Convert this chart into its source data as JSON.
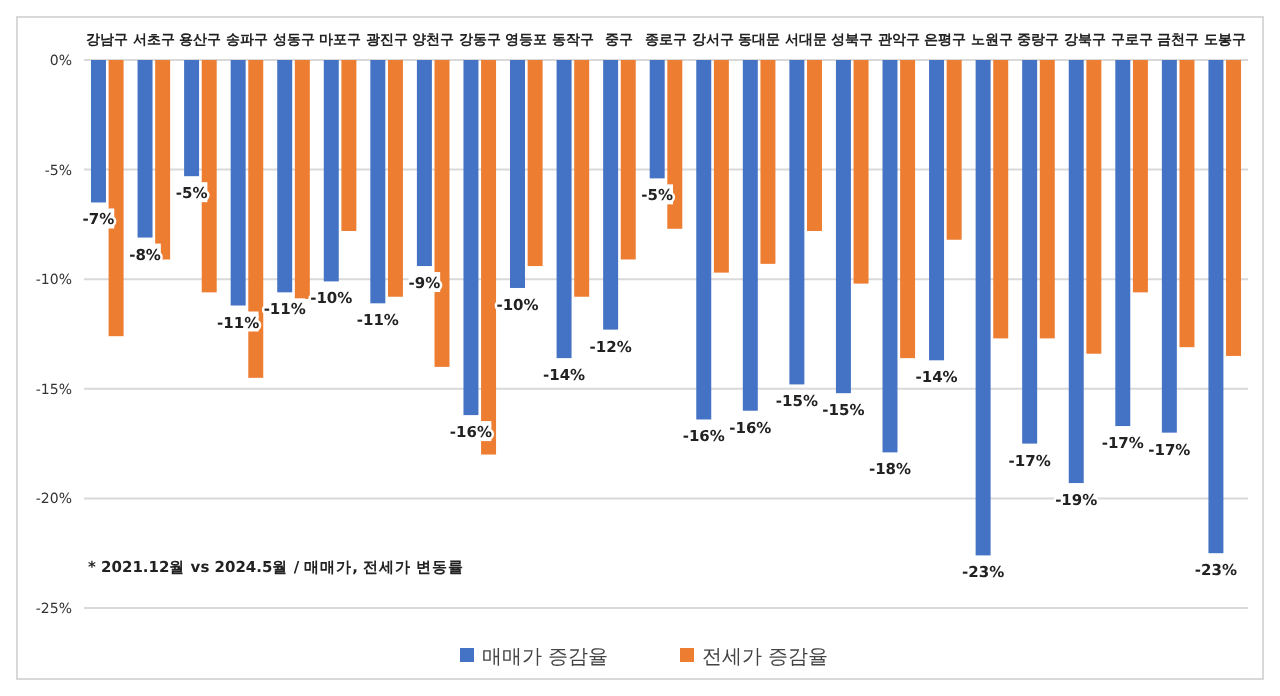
{
  "chart_data": {
    "type": "bar",
    "categories": [
      "강남구",
      "서초구",
      "용산구",
      "송파구",
      "성동구",
      "마포구",
      "광진구",
      "양천구",
      "강동구",
      "영등포",
      "동작구",
      "중구",
      "종로구",
      "강서구",
      "동대문",
      "서대문",
      "성북구",
      "관악구",
      "은평구",
      "노원구",
      "중랑구",
      "강북구",
      "구로구",
      "금천구",
      "도봉구"
    ],
    "series": [
      {
        "name": "매매가 증감율",
        "color": "#4472c4",
        "values": [
          -6.5,
          -8.1,
          -5.3,
          -11.2,
          -10.6,
          -10.1,
          -11.1,
          -9.4,
          -16.2,
          -10.4,
          -13.6,
          -12.3,
          -5.4,
          -16.4,
          -16.0,
          -14.8,
          -15.2,
          -17.9,
          -13.7,
          -22.6,
          -17.5,
          -19.3,
          -16.7,
          -17.0,
          -22.5
        ],
        "value_labels": [
          "-7%",
          "-8%",
          "-5%",
          "-11%",
          "-11%",
          "-10%",
          "-11%",
          "-9%",
          "-16%",
          "-10%",
          "-14%",
          "-12%",
          "-5%",
          "-16%",
          "-16%",
          "-15%",
          "-15%",
          "-18%",
          "-14%",
          "-23%",
          "-17%",
          "-19%",
          "-17%",
          "-17%",
          "-23%"
        ]
      },
      {
        "name": "전세가 증감율",
        "color": "#ed7d31",
        "values": [
          -12.6,
          -9.1,
          -10.6,
          -14.5,
          -10.9,
          -7.8,
          -10.8,
          -14.0,
          -18.0,
          -9.4,
          -10.8,
          -9.1,
          -7.7,
          -9.7,
          -9.3,
          -7.8,
          -10.2,
          -13.6,
          -8.2,
          -12.7,
          -12.7,
          -13.4,
          -10.6,
          -13.1,
          -13.5
        ]
      }
    ],
    "ylim": [
      -25,
      0
    ],
    "yticks": [
      {
        "value": 0,
        "label": "0%"
      },
      {
        "value": -5,
        "label": "-5%"
      },
      {
        "value": -10,
        "label": "-10%"
      },
      {
        "value": -15,
        "label": "-15%"
      },
      {
        "value": -20,
        "label": "-20%"
      },
      {
        "value": -25,
        "label": "-25%"
      }
    ],
    "grid": "y",
    "legend": "bottom",
    "annotations": [
      "* 2021.12월 vs 2024.5월 / 매매가, 전세가 변동률"
    ]
  }
}
